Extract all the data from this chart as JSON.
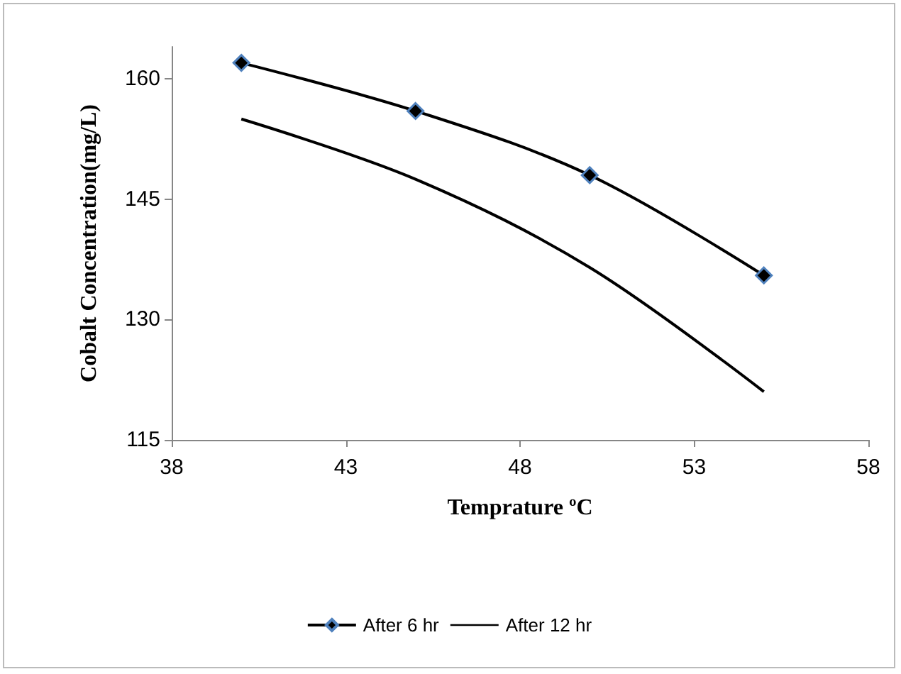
{
  "chart_data": {
    "type": "line",
    "xlabel": "Temprature ºC",
    "ylabel": "Cobalt Concentration(mg/L)",
    "x": [
      40,
      45,
      50,
      55
    ],
    "series": [
      {
        "name": "After 6 hr",
        "color": "#000000",
        "marker": "diamond",
        "values": [
          162,
          156,
          148,
          135.5
        ]
      },
      {
        "name": "After 12 hr",
        "color": "#000000",
        "marker": "none",
        "values": [
          155,
          147.5,
          136.5,
          121
        ]
      }
    ],
    "xlim": [
      38,
      58
    ],
    "xticks": [
      38,
      43,
      48,
      53,
      58
    ],
    "ylim": [
      115,
      164
    ],
    "yticks": [
      115,
      130,
      145,
      160
    ],
    "grid": false,
    "legend": "bottom",
    "line_style": "solid"
  }
}
